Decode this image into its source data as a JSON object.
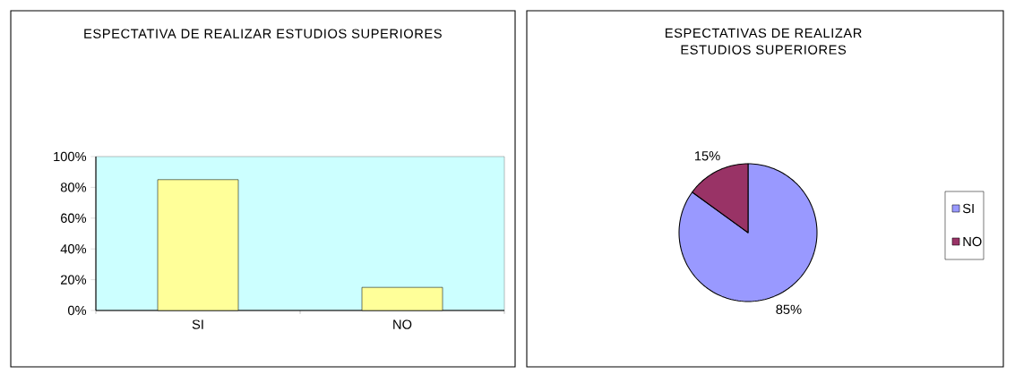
{
  "chart_data": [
    {
      "type": "bar",
      "title": "ESPECTATIVA DE REALIZAR ESTUDIOS SUPERIORES",
      "categories": [
        "SI",
        "NO"
      ],
      "values": [
        85,
        15
      ],
      "color": "#ffff99",
      "ylim": [
        0,
        100
      ],
      "yticks": [
        {
          "value": 0,
          "label": "0%"
        },
        {
          "value": 20,
          "label": "20%"
        },
        {
          "value": 40,
          "label": "40%"
        },
        {
          "value": 60,
          "label": "60%"
        },
        {
          "value": 80,
          "label": "80%"
        },
        {
          "value": 100,
          "label": "100%"
        }
      ],
      "grid": false,
      "legend": false
    },
    {
      "type": "pie",
      "title": "ESPECTATIVAS DE REALIZAR ESTUDIOS SUPERIORES",
      "categories": [
        "SI",
        "NO"
      ],
      "values": [
        85,
        15
      ],
      "colors": [
        "#9999ff",
        "#993366"
      ],
      "value_labels": [
        "85%",
        "15%"
      ],
      "legend": "right"
    }
  ]
}
